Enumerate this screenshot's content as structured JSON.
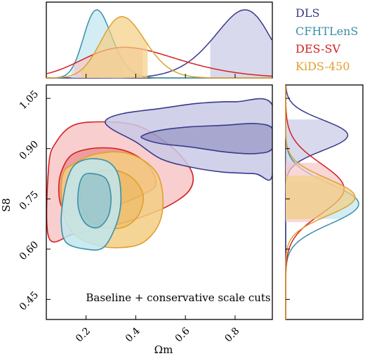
{
  "chart_data": {
    "type": "contour",
    "xlabel": "Ωm",
    "ylabel": "S8",
    "xlim": [
      0.04,
      0.95
    ],
    "ylim": [
      0.39,
      1.09
    ],
    "xticks": [
      "0.2",
      "0.4",
      "0.6",
      "0.8"
    ],
    "xtick_values": [
      0.2,
      0.4,
      0.6,
      0.8
    ],
    "yticks": [
      "0.45",
      "0.60",
      "0.75",
      "0.90",
      "1.05"
    ],
    "ytick_values": [
      0.45,
      0.6,
      0.75,
      0.9,
      1.05
    ],
    "annotation": "Baseline + conservative scale cuts",
    "legend_position": "top-right",
    "series": [
      {
        "name": "DLS",
        "color": "#3a3a8c",
        "fill": "#c9c9e6",
        "omega_m_peak": 0.88,
        "omega_m_band": [
          0.7,
          0.95
        ],
        "s8_peak": 0.935,
        "s8_band": [
          0.83,
          0.99
        ],
        "contour68": [
          [
            0.43,
            0.94
          ],
          [
            0.5,
            0.955
          ],
          [
            0.62,
            0.965
          ],
          [
            0.76,
            0.97
          ],
          [
            0.88,
            0.975
          ],
          [
            0.95,
            0.96
          ],
          [
            0.95,
            0.9
          ],
          [
            0.88,
            0.885
          ],
          [
            0.76,
            0.89
          ],
          [
            0.62,
            0.905
          ],
          [
            0.5,
            0.915
          ],
          [
            0.43,
            0.93
          ]
        ],
        "contour95": [
          [
            0.28,
            0.985
          ],
          [
            0.35,
            1.005
          ],
          [
            0.5,
            1.02
          ],
          [
            0.65,
            1.035
          ],
          [
            0.8,
            1.04
          ],
          [
            0.95,
            1.03
          ],
          [
            0.95,
            0.82
          ],
          [
            0.88,
            0.825
          ],
          [
            0.75,
            0.83
          ],
          [
            0.62,
            0.845
          ],
          [
            0.5,
            0.87
          ],
          [
            0.4,
            0.92
          ],
          [
            0.3,
            0.96
          ]
        ]
      },
      {
        "name": "CFHTLenS",
        "color": "#3a8fa8",
        "fill": "#bfe6ee",
        "omega_m_peak": 0.23,
        "omega_m_band": [
          0.14,
          0.35
        ],
        "s8_peak": 0.745,
        "s8_band": [
          0.69,
          0.8
        ],
        "contour68": [
          [
            0.19,
            0.82
          ],
          [
            0.23,
            0.825
          ],
          [
            0.28,
            0.81
          ],
          [
            0.3,
            0.76
          ],
          [
            0.29,
            0.7
          ],
          [
            0.25,
            0.665
          ],
          [
            0.2,
            0.675
          ],
          [
            0.17,
            0.72
          ],
          [
            0.17,
            0.78
          ]
        ],
        "contour95": [
          [
            0.16,
            0.855
          ],
          [
            0.22,
            0.87
          ],
          [
            0.29,
            0.86
          ],
          [
            0.33,
            0.82
          ],
          [
            0.34,
            0.74
          ],
          [
            0.32,
            0.67
          ],
          [
            0.27,
            0.605
          ],
          [
            0.2,
            0.6
          ],
          [
            0.12,
            0.62
          ],
          [
            0.1,
            0.68
          ],
          [
            0.11,
            0.76
          ],
          [
            0.13,
            0.82
          ]
        ]
      },
      {
        "name": "DES-SV",
        "color": "#d42020",
        "fill": "#f7c6c6",
        "omega_m_peak": 0.26,
        "omega_m_band": [
          0.15,
          0.43
        ],
        "s8_peak": 0.775,
        "s8_band": [
          0.68,
          0.86
        ],
        "contour68": [
          [
            0.1,
            0.83
          ],
          [
            0.14,
            0.88
          ],
          [
            0.22,
            0.9
          ],
          [
            0.32,
            0.9
          ],
          [
            0.4,
            0.88
          ],
          [
            0.46,
            0.84
          ],
          [
            0.48,
            0.79
          ],
          [
            0.42,
            0.76
          ],
          [
            0.34,
            0.735
          ],
          [
            0.24,
            0.71
          ],
          [
            0.14,
            0.7
          ],
          [
            0.1,
            0.73
          ],
          [
            0.09,
            0.78
          ]
        ],
        "contour95": [
          [
            0.05,
            0.85
          ],
          [
            0.08,
            0.92
          ],
          [
            0.15,
            0.97
          ],
          [
            0.27,
            0.98
          ],
          [
            0.4,
            0.97
          ],
          [
            0.5,
            0.93
          ],
          [
            0.58,
            0.88
          ],
          [
            0.63,
            0.82
          ],
          [
            0.61,
            0.77
          ],
          [
            0.52,
            0.725
          ],
          [
            0.4,
            0.69
          ],
          [
            0.28,
            0.665
          ],
          [
            0.15,
            0.645
          ],
          [
            0.05,
            0.635
          ]
        ]
      },
      {
        "name": "KiDS-450",
        "color": "#e0a030",
        "fill": "#f3ce82",
        "omega_m_peak": 0.33,
        "omega_m_band": [
          0.18,
          0.45
        ],
        "s8_peak": 0.76,
        "s8_band": [
          0.69,
          0.82
        ],
        "contour68": [
          [
            0.19,
            0.8
          ],
          [
            0.24,
            0.83
          ],
          [
            0.32,
            0.835
          ],
          [
            0.39,
            0.81
          ],
          [
            0.43,
            0.76
          ],
          [
            0.41,
            0.7
          ],
          [
            0.35,
            0.665
          ],
          [
            0.27,
            0.665
          ],
          [
            0.21,
            0.69
          ],
          [
            0.18,
            0.74
          ]
        ],
        "contour95": [
          [
            0.14,
            0.85
          ],
          [
            0.22,
            0.88
          ],
          [
            0.33,
            0.89
          ],
          [
            0.42,
            0.87
          ],
          [
            0.49,
            0.82
          ],
          [
            0.51,
            0.74
          ],
          [
            0.49,
            0.67
          ],
          [
            0.43,
            0.62
          ],
          [
            0.35,
            0.605
          ],
          [
            0.25,
            0.61
          ],
          [
            0.16,
            0.64
          ],
          [
            0.11,
            0.7
          ],
          [
            0.1,
            0.78
          ],
          [
            0.11,
            0.83
          ]
        ]
      }
    ]
  }
}
